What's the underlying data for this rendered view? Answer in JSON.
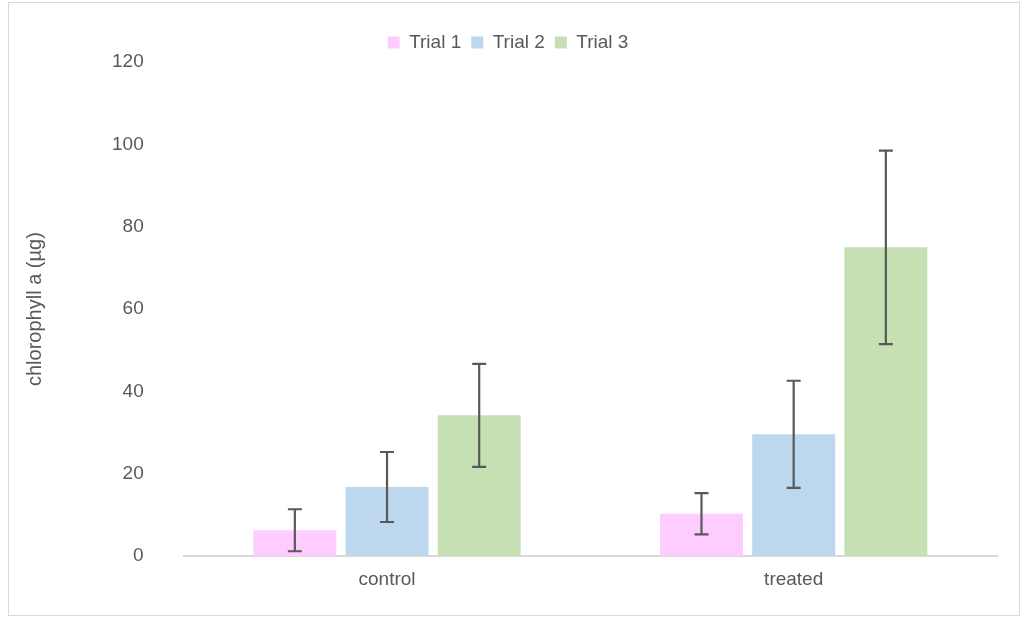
{
  "chart_data": {
    "type": "bar",
    "ylabel": "chlorophyll a (µg)",
    "categories": [
      "control",
      "treated"
    ],
    "series": [
      {
        "name": "Trial 1",
        "color": "#ffccff",
        "values": [
          6.3,
          10.3
        ],
        "errors": [
          5.1,
          5
        ]
      },
      {
        "name": "Trial 2",
        "color": "#bdd7ee",
        "values": [
          16.8,
          29.6
        ],
        "errors": [
          8.5,
          13
        ]
      },
      {
        "name": "Trial 3",
        "color": "#c6e0b4",
        "values": [
          34.2,
          75
        ],
        "errors": [
          12.5,
          23.5
        ]
      }
    ],
    "ylim": [
      0,
      120
    ],
    "yticks": [
      0,
      20,
      40,
      60,
      80,
      100,
      120
    ],
    "grid": false,
    "legend": "top"
  }
}
